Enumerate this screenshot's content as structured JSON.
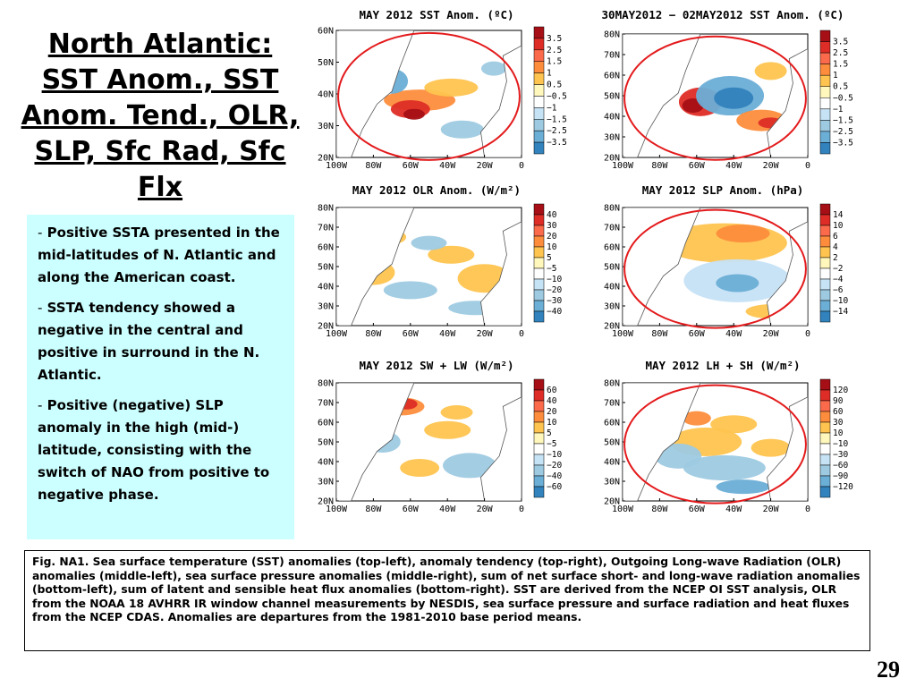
{
  "slide": {
    "title": "North Atlantic: SST Anom., SST Anom. Tend., OLR, SLP, Sfc Rad, Sfc Flx",
    "page_number": "29",
    "bullets": [
      "Positive SSTA presented in the mid-latitudes of N. Atlantic and along the American coast.",
      "SSTA tendency showed a negative in the central and positive in surround in the N. Atlantic.",
      "Positive (negative) SLP anomaly in the high (mid-) latitude, consisting with the switch of NAO from positive to negative phase."
    ],
    "bullet_dash": "-",
    "caption": "Fig. NA1. Sea surface temperature (SST) anomalies (top-left), anomaly tendency (top-right), Outgoing Long-wave Radiation (OLR) anomalies (middle-left), sea surface pressure anomalies (middle-right), sum of net surface short- and long-wave radiation anomalies (bottom-left), sum of latent and sensible heat flux anomalies (bottom-right). SST are derived from the NCEP OI SST analysis, OLR from the NOAA 18 AVHRR IR window channel measurements by NESDIS, sea surface pressure and surface radiation and heat fluxes from the NCEP CDAS. Anomalies are departures from the 1981-2010 base period means."
  },
  "maps": {
    "lat_labels": [
      "80N",
      "70N",
      "60N",
      "50N",
      "40N",
      "30N",
      "20N"
    ],
    "lon_labels": [
      "100W",
      "80W",
      "60W",
      "40W",
      "20W",
      "0"
    ],
    "panels": [
      {
        "id": "sst-anom",
        "title": "MAY 2012 SST Anom. (ºC)",
        "ticks": [
          "3.5",
          "2.5",
          "1.5",
          "1",
          "0.5",
          "−0.5",
          "−1",
          "−1.5",
          "−2.5",
          "−3.5"
        ],
        "lat_labels": [
          "60N",
          "50N",
          "40N",
          "30N",
          "20N"
        ],
        "circled": true
      },
      {
        "id": "sst-tend",
        "title": "30MAY2012 − 02MAY2012 SST Anom. (ºC)",
        "ticks": [
          "3.5",
          "2.5",
          "1.5",
          "1",
          "0.5",
          "−0.5",
          "−1",
          "−1.5",
          "−2.5",
          "−3.5"
        ],
        "lat_labels": [
          "80N",
          "70N",
          "60N",
          "50N",
          "40N",
          "30N",
          "20N"
        ],
        "circled": true
      },
      {
        "id": "olr-anom",
        "title": "MAY 2012 OLR Anom. (W/m²)",
        "ticks": [
          "40",
          "30",
          "20",
          "10",
          "5",
          "−5",
          "−10",
          "−20",
          "−30",
          "−40"
        ],
        "lat_labels": [
          "80N",
          "70N",
          "60N",
          "50N",
          "40N",
          "30N",
          "20N"
        ],
        "circled": false
      },
      {
        "id": "slp-anom",
        "title": "MAY 2012 SLP Anom. (hPa)",
        "ticks": [
          "14",
          "10",
          "6",
          "4",
          "2",
          "−2",
          "−4",
          "−6",
          "−10",
          "−14"
        ],
        "lat_labels": [
          "80N",
          "70N",
          "60N",
          "50N",
          "40N",
          "30N",
          "20N"
        ],
        "circled": true
      },
      {
        "id": "sw-lw",
        "title": "MAY 2012 SW + LW (W/m²)",
        "ticks": [
          "60",
          "40",
          "20",
          "10",
          "5",
          "−5",
          "−10",
          "−20",
          "−40",
          "−60"
        ],
        "lat_labels": [
          "80N",
          "70N",
          "60N",
          "50N",
          "40N",
          "30N",
          "20N"
        ],
        "circled": false
      },
      {
        "id": "lh-sh",
        "title": "MAY 2012 LH + SH (W/m²)",
        "ticks": [
          "120",
          "90",
          "60",
          "30",
          "10",
          "−10",
          "−30",
          "−60",
          "−90",
          "−120"
        ],
        "lat_labels": [
          "80N",
          "70N",
          "60N",
          "50N",
          "40N",
          "30N",
          "20N"
        ],
        "circled": true
      }
    ],
    "colorbar_colors": [
      "#a50f15",
      "#de2d26",
      "#fb6a4a",
      "#fd8d3c",
      "#fec44f",
      "#fff7bc",
      "#ffffff",
      "#c6e2f5",
      "#9ecae1",
      "#6baed6",
      "#3182bd"
    ],
    "circle_color": "#e31a1c"
  }
}
